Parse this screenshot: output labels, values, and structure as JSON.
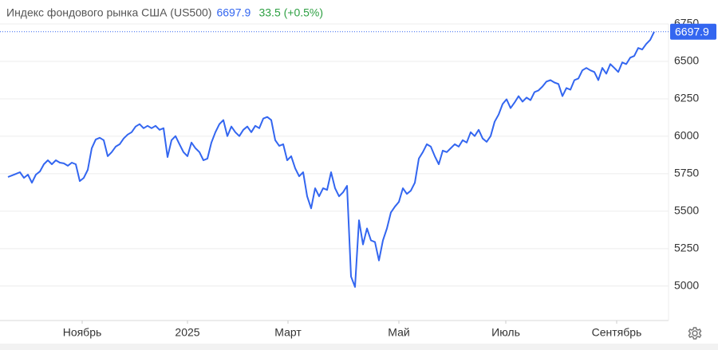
{
  "chart_data": {
    "type": "line",
    "title": "Индекс фондового рынка США (US500)",
    "price": "6697.9",
    "change": "33.5 (+0.5%)",
    "color": "#3366f0",
    "values": [
      5728,
      5738,
      5749,
      5760,
      5722,
      5744,
      5690,
      5744,
      5765,
      5813,
      5840,
      5813,
      5840,
      5824,
      5819,
      5803,
      5824,
      5813,
      5701,
      5722,
      5776,
      5920,
      5979,
      5990,
      5974,
      5867,
      5894,
      5931,
      5947,
      5985,
      6011,
      6027,
      6065,
      6081,
      6054,
      6070,
      6054,
      6070,
      6043,
      6054,
      5861,
      5974,
      6001,
      5947,
      5894,
      5867,
      5958,
      5920,
      5894,
      5840,
      5851,
      5958,
      6027,
      6081,
      6108,
      6001,
      6065,
      6027,
      6001,
      6043,
      6065,
      6027,
      6070,
      6054,
      6118,
      6129,
      6108,
      5974,
      5936,
      5947,
      5840,
      5867,
      5786,
      5733,
      5760,
      5599,
      5519,
      5653,
      5599,
      5653,
      5642,
      5760,
      5653,
      5599,
      5626,
      5669,
      5064,
      4994,
      5439,
      5278,
      5385,
      5305,
      5294,
      5171,
      5305,
      5385,
      5492,
      5530,
      5562,
      5653,
      5615,
      5637,
      5690,
      5851,
      5894,
      5947,
      5931,
      5867,
      5813,
      5904,
      5894,
      5920,
      5947,
      5931,
      5974,
      5958,
      6027,
      6001,
      6043,
      5985,
      5963,
      6001,
      6097,
      6145,
      6215,
      6247,
      6188,
      6225,
      6268,
      6231,
      6258,
      6241,
      6295,
      6306,
      6332,
      6365,
      6375,
      6359,
      6349,
      6268,
      6322,
      6311,
      6375,
      6386,
      6440,
      6456,
      6440,
      6429,
      6375,
      6456,
      6418,
      6482,
      6456,
      6429,
      6493,
      6482,
      6525,
      6536,
      6589,
      6579,
      6616,
      6643,
      6697.9
    ],
    "xlim": [
      -2,
      165.6
    ],
    "xticks": [
      {
        "value": 18.6,
        "label": "Ноябрь"
      },
      {
        "value": 45,
        "label": "2025"
      },
      {
        "value": 70.2,
        "label": "Март"
      },
      {
        "value": 98,
        "label": "Май"
      },
      {
        "value": 124.8,
        "label": "Июль"
      },
      {
        "value": 152.6,
        "label": "Сентябрь"
      }
    ],
    "ylim": [
      4770,
      6750
    ],
    "yticks": [
      5000,
      5250,
      5500,
      5750,
      6000,
      6250,
      6500,
      6750
    ],
    "grid": true
  }
}
